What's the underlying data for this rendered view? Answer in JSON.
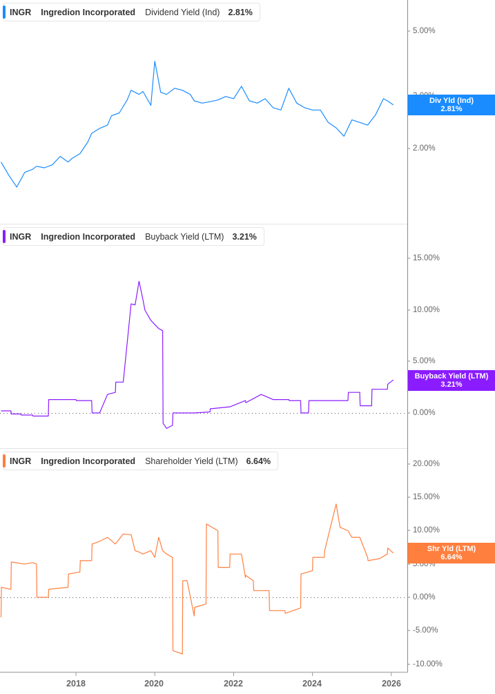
{
  "panels": [
    {
      "ticker": "INGR",
      "company": "Ingredion Incorporated",
      "metric": "Dividend Yield (Ind)",
      "value": "2.81%",
      "color": "#1a8cff",
      "flag_label": "Div Yld (Ind)",
      "flag_value": "2.81%",
      "y_ticks": [
        "5.00%",
        "3.00%",
        "2.00%"
      ]
    },
    {
      "ticker": "INGR",
      "company": "Ingredion Incorporated",
      "metric": "Buyback Yield (LTM)",
      "value": "3.21%",
      "color": "#8a1cff",
      "flag_label": "Buyback Yield (LTM)",
      "flag_value": "3.21%",
      "y_ticks": [
        "15.00%",
        "10.00%",
        "5.00%",
        "0.00%"
      ]
    },
    {
      "ticker": "INGR",
      "company": "Ingredion Incorporated",
      "metric": "Shareholder Yield (LTM)",
      "value": "6.64%",
      "color": "#ff7f3f",
      "flag_label": "Shr Yld (LTM)",
      "flag_value": "6.64%",
      "y_ticks": [
        "20.00%",
        "15.00%",
        "10.00%",
        "5.00%",
        "0.00%",
        "-5.00%",
        "-10.00%"
      ]
    }
  ],
  "x_axis": {
    "ticks": [
      "2018",
      "2020",
      "2022",
      "2024",
      "2026"
    ]
  },
  "chart_data": [
    {
      "type": "line",
      "title": "INGR Ingredion Incorporated Dividend Yield (Ind)",
      "ylabel": "Dividend Yield (Ind)",
      "yscale": "log",
      "ylim": [
        1.0,
        6.0
      ],
      "y_ticks": [
        2.0,
        3.0,
        5.0
      ],
      "x_ticks": [
        2018,
        2020,
        2022,
        2024,
        2026
      ],
      "last_value": 2.81,
      "series": [
        {
          "name": "Dividend Yield (Ind)",
          "color": "#1a8cff",
          "x": [
            2016.1,
            2016.3,
            2016.5,
            2016.7,
            2016.9,
            2017.0,
            2017.2,
            2017.4,
            2017.6,
            2017.8,
            2017.9,
            2018.1,
            2018.3,
            2018.4,
            2018.6,
            2018.8,
            2018.9,
            2019.1,
            2019.3,
            2019.4,
            2019.6,
            2019.7,
            2019.9,
            2020.0,
            2020.15,
            2020.3,
            2020.5,
            2020.7,
            2020.9,
            2021.0,
            2021.2,
            2021.4,
            2021.6,
            2021.8,
            2022.0,
            2022.2,
            2022.4,
            2022.6,
            2022.8,
            2023.0,
            2023.2,
            2023.4,
            2023.6,
            2023.8,
            2024.0,
            2024.2,
            2024.4,
            2024.6,
            2024.8,
            2025.0,
            2025.2,
            2025.4,
            2025.6,
            2025.8,
            2025.9,
            2026.05
          ],
          "values": [
            1.8,
            1.62,
            1.48,
            1.66,
            1.7,
            1.74,
            1.72,
            1.76,
            1.88,
            1.8,
            1.85,
            1.92,
            2.1,
            2.25,
            2.34,
            2.4,
            2.58,
            2.64,
            2.92,
            3.15,
            3.05,
            3.12,
            2.8,
            3.95,
            3.1,
            3.05,
            3.2,
            3.15,
            3.05,
            2.9,
            2.85,
            2.88,
            2.92,
            3.0,
            2.95,
            3.25,
            2.9,
            2.85,
            2.95,
            2.75,
            2.7,
            3.2,
            2.85,
            2.75,
            2.7,
            2.7,
            2.45,
            2.35,
            2.2,
            2.5,
            2.45,
            2.4,
            2.6,
            2.95,
            2.9,
            2.81
          ]
        }
      ]
    },
    {
      "type": "line",
      "title": "INGR Ingredion Incorporated Buyback Yield (LTM)",
      "ylabel": "Buyback Yield (LTM)",
      "ylim": [
        -3.0,
        18.0
      ],
      "y_ticks": [
        0.0,
        5.0,
        10.0,
        15.0
      ],
      "x_ticks": [
        2018,
        2020,
        2022,
        2024,
        2026
      ],
      "last_value": 3.21,
      "series": [
        {
          "name": "Buyback Yield (LTM)",
          "color": "#8a1cff",
          "x": [
            2016.1,
            2016.35,
            2016.36,
            2016.6,
            2016.61,
            2016.9,
            2016.91,
            2017.3,
            2017.31,
            2018.0,
            2018.01,
            2018.4,
            2018.41,
            2018.6,
            2018.8,
            2019.0,
            2019.01,
            2019.2,
            2019.4,
            2019.5,
            2019.6,
            2019.7,
            2019.75,
            2019.9,
            2020.1,
            2020.2,
            2020.21,
            2020.3,
            2020.45,
            2020.46,
            2021.0,
            2021.4,
            2021.41,
            2021.9,
            2021.91,
            2022.3,
            2022.31,
            2022.6,
            2022.7,
            2023.0,
            2023.4,
            2023.41,
            2023.7,
            2023.71,
            2023.9,
            2023.91,
            2024.6,
            2024.61,
            2024.9,
            2024.91,
            2025.2,
            2025.21,
            2025.5,
            2025.51,
            2025.9,
            2025.91,
            2026.05
          ],
          "values": [
            0.2,
            0.2,
            -0.1,
            -0.1,
            -0.2,
            -0.2,
            -0.3,
            -0.3,
            1.3,
            1.3,
            1.2,
            1.2,
            0.0,
            0.0,
            1.8,
            2.0,
            3.0,
            3.0,
            10.6,
            10.5,
            12.8,
            11.0,
            10.0,
            9.0,
            8.2,
            8.0,
            -1.0,
            -1.5,
            -1.2,
            0.0,
            0.0,
            0.1,
            0.4,
            0.6,
            0.6,
            1.2,
            1.0,
            1.6,
            1.8,
            1.3,
            1.3,
            1.2,
            1.2,
            0.0,
            0.0,
            1.2,
            1.2,
            1.2,
            1.2,
            2.0,
            2.0,
            0.7,
            0.7,
            2.3,
            2.3,
            2.8,
            3.21
          ]
        }
      ]
    },
    {
      "type": "line",
      "title": "INGR Ingredion Incorporated Shareholder Yield (LTM)",
      "ylabel": "Shareholder Yield (LTM)",
      "ylim": [
        -11.0,
        22.0
      ],
      "y_ticks": [
        -10.0,
        -5.0,
        0.0,
        5.0,
        10.0,
        15.0,
        20.0
      ],
      "x_ticks": [
        2018,
        2020,
        2022,
        2024,
        2026
      ],
      "last_value": 6.64,
      "series": [
        {
          "name": "Shareholder Yield (LTM)",
          "color": "#ff7f3f",
          "x": [
            2016.1,
            2016.11,
            2016.35,
            2016.36,
            2016.7,
            2016.9,
            2017.0,
            2017.01,
            2017.3,
            2017.31,
            2017.8,
            2017.81,
            2018.1,
            2018.11,
            2018.4,
            2018.41,
            2018.6,
            2018.8,
            2019.0,
            2019.2,
            2019.4,
            2019.5,
            2019.6,
            2019.7,
            2019.9,
            2020.0,
            2020.1,
            2020.2,
            2020.3,
            2020.45,
            2020.46,
            2020.7,
            2020.71,
            2020.82,
            2021.0,
            2021.01,
            2021.3,
            2021.31,
            2021.6,
            2021.61,
            2021.9,
            2021.91,
            2022.2,
            2022.3,
            2022.31,
            2022.5,
            2022.51,
            2022.9,
            2022.91,
            2023.3,
            2023.31,
            2023.7,
            2023.71,
            2024.0,
            2024.01,
            2024.3,
            2024.31,
            2024.6,
            2024.7,
            2024.9,
            2025.0,
            2025.2,
            2025.4,
            2025.41,
            2025.7,
            2025.9,
            2025.91,
            2026.05
          ],
          "values": [
            -3.0,
            1.5,
            1.2,
            5.3,
            5.0,
            5.2,
            5.0,
            0.0,
            0.0,
            1.2,
            1.5,
            3.5,
            3.8,
            5.5,
            5.5,
            8.0,
            8.4,
            9.0,
            8.0,
            9.5,
            9.4,
            7.0,
            6.8,
            6.5,
            7.0,
            6.0,
            9.0,
            7.0,
            6.5,
            6.0,
            -8.0,
            -8.5,
            2.5,
            2.5,
            -2.8,
            -1.5,
            -1.0,
            11.0,
            10.0,
            4.5,
            4.5,
            6.5,
            6.5,
            3.0,
            3.3,
            2.5,
            1.0,
            1.0,
            -2.0,
            -2.0,
            -2.4,
            -1.6,
            3.5,
            4.0,
            6.0,
            6.0,
            7.0,
            14.0,
            10.5,
            10.0,
            9.0,
            9.0,
            6.0,
            5.5,
            5.8,
            6.5,
            7.4,
            6.64
          ]
        }
      ]
    }
  ]
}
